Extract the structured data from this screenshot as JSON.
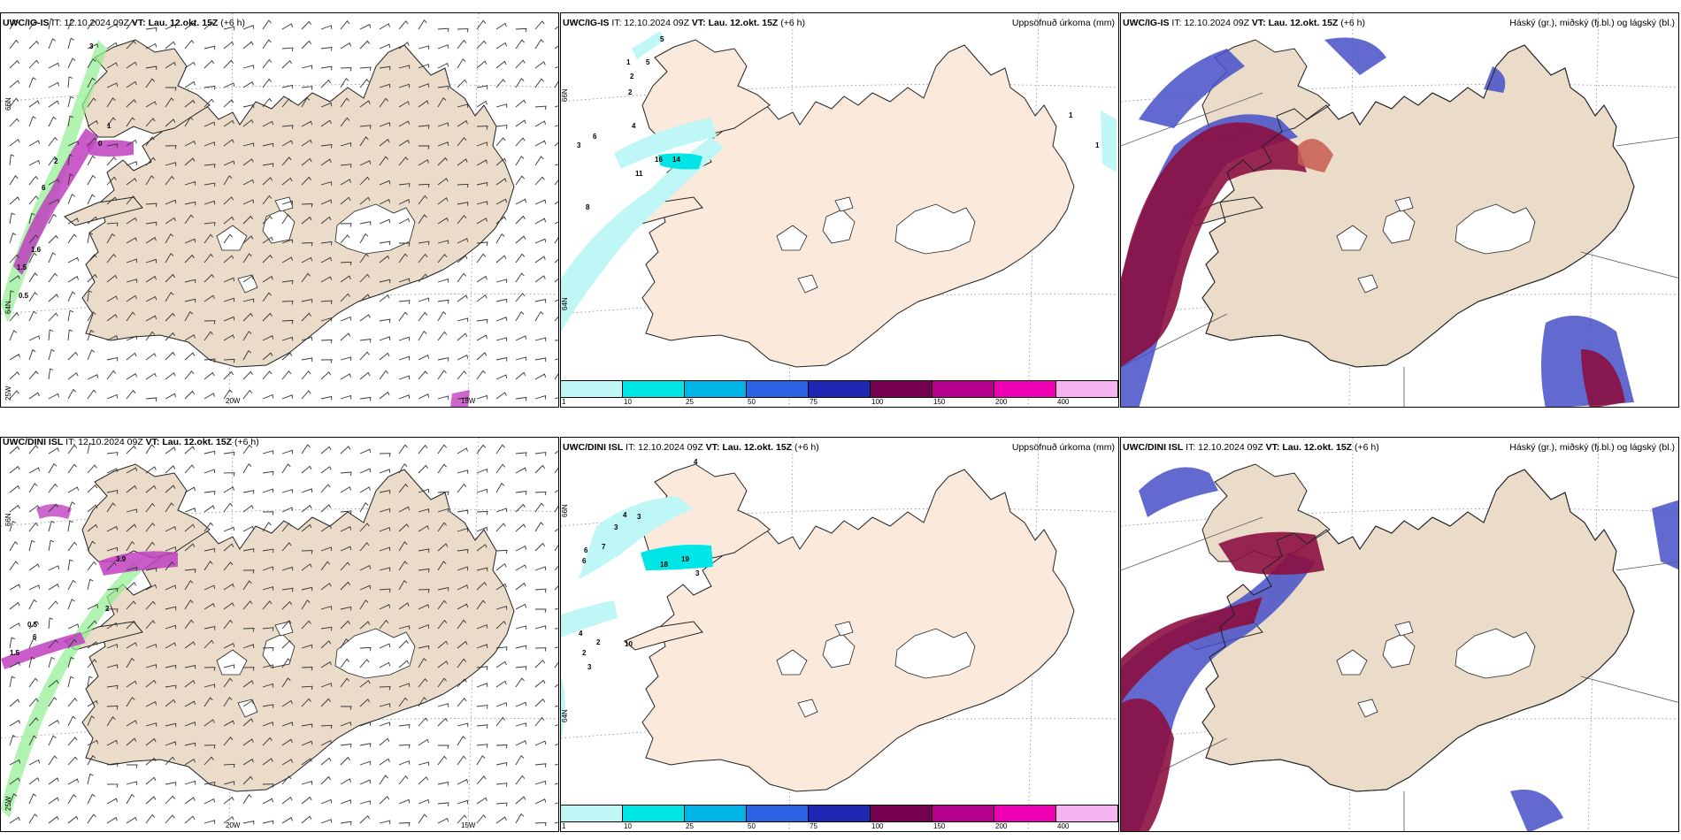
{
  "panels": [
    {
      "title_a": "UWC/IG-IS",
      "title_b": " IT: 12.10.2024 09Z ",
      "title_c": "VT: Lau. 12.okt. 15Z",
      "title_d": " (+6 h)",
      "right": ""
    },
    {
      "title_a": "UWC/IG-IS",
      "title_b": " IT: 12.10.2024 09Z ",
      "title_c": "VT: Lau. 12.okt. 15Z",
      "title_d": " (+6 h)",
      "right": "Uppsöfnuð úrkoma (mm)"
    },
    {
      "title_a": "UWC/IG-IS",
      "title_b": " IT: 12.10.2024 09Z ",
      "title_c": "VT: Lau. 12.okt. 15Z",
      "title_d": " (+6 h)",
      "right": "Háský (gr.), miðský (fj.bl.) og lágský (bl.)"
    },
    {
      "title_a": "UWC/DINI ISL",
      "title_b": " IT: 12.10.2024 09Z ",
      "title_c": "VT: Lau. 12.okt. 15Z",
      "title_d": " (+6 h)",
      "right": ""
    },
    {
      "title_a": "UWC/DINI ISL",
      "title_b": " IT: 12.10.2024 09Z ",
      "title_c": "VT: Lau. 12.okt. 15Z",
      "title_d": " (+6 h)",
      "right": "Uppsöfnuð úrkoma (mm)"
    },
    {
      "title_a": "UWC/DINI ISL",
      "title_b": " IT: 12.10.2024 09Z ",
      "title_c": "VT: Lau. 12.okt. 15Z",
      "title_d": " (+6 h)",
      "right": "Háský (gr.), miðský (fj.bl.) og lágský (bl.)"
    }
  ],
  "grid_labels": {
    "lat_66": "66N",
    "lat_64": "64N",
    "lon_25": "25W",
    "lon_20": "20W",
    "lon_15": "15W"
  },
  "colorbar": {
    "ticks": [
      "1",
      "10",
      "25",
      "50",
      "75",
      "100",
      "150",
      "200",
      "400"
    ],
    "colors": [
      "#bff6f6",
      "#00e6e6",
      "#00b4e6",
      "#2d64e6",
      "#1e28b4",
      "#780050",
      "#b4008c",
      "#f000b4",
      "#f5b4f0"
    ]
  },
  "precip_labels_top": [
    "5",
    "1",
    "5",
    "2",
    "2",
    "6",
    "3",
    "4",
    "16",
    "14",
    "11",
    "8",
    "1",
    "1"
  ],
  "precip_labels_bottom": [
    "4",
    "4",
    "3",
    "3",
    "6",
    "7",
    "6",
    "19",
    "18",
    "3",
    "4",
    "2",
    "2",
    "3",
    "10"
  ],
  "pressure_labels_top": [
    "3",
    "1",
    "0",
    "2",
    "6",
    "1.6",
    "1.5",
    "0.5"
  ],
  "pressure_labels_bottom": [
    "3.9",
    "2",
    "0.5",
    "6",
    "1.5"
  ],
  "colors": {
    "land": "#eadcc8",
    "land_precip": "#fbeadb",
    "cloud_high": "#8c1040",
    "cloud_mid": "#c85a50",
    "cloud_low": "#4650c8",
    "precip_green": "#90ee90",
    "precip_magenta": "#c040c0"
  }
}
